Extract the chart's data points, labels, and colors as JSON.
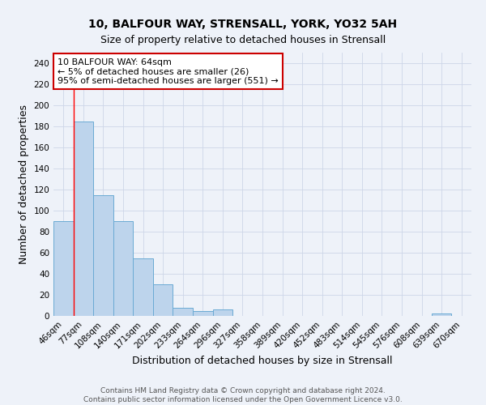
{
  "title": "10, BALFOUR WAY, STRENSALL, YORK, YO32 5AH",
  "subtitle": "Size of property relative to detached houses in Strensall",
  "xlabel": "Distribution of detached houses by size in Strensall",
  "ylabel": "Number of detached properties",
  "footer_line1": "Contains HM Land Registry data © Crown copyright and database right 2024.",
  "footer_line2": "Contains public sector information licensed under the Open Government Licence v3.0.",
  "bar_labels": [
    "46sqm",
    "77sqm",
    "108sqm",
    "140sqm",
    "171sqm",
    "202sqm",
    "233sqm",
    "264sqm",
    "296sqm",
    "327sqm",
    "358sqm",
    "389sqm",
    "420sqm",
    "452sqm",
    "483sqm",
    "514sqm",
    "545sqm",
    "576sqm",
    "608sqm",
    "639sqm",
    "670sqm"
  ],
  "bar_values": [
    90,
    185,
    115,
    90,
    55,
    30,
    8,
    5,
    6,
    0,
    0,
    0,
    0,
    0,
    0,
    0,
    0,
    0,
    0,
    2,
    0
  ],
  "bar_color": "#bdd4ec",
  "bar_edge_color": "#6aaad4",
  "background_color": "#eef2f9",
  "annotation_line1": "10 BALFOUR WAY: 64sqm",
  "annotation_line2": "← 5% of detached houses are smaller (26)",
  "annotation_line3": "95% of semi-detached houses are larger (551) →",
  "annotation_box_color": "#ffffff",
  "annotation_box_edge_color": "#cc0000",
  "red_line_x": 0.5,
  "ylim": [
    0,
    250
  ],
  "yticks": [
    0,
    20,
    40,
    60,
    80,
    100,
    120,
    140,
    160,
    180,
    200,
    220,
    240
  ],
  "grid_color": "#cdd6e8",
  "title_fontsize": 10,
  "subtitle_fontsize": 9,
  "axis_label_fontsize": 9,
  "tick_fontsize": 7.5,
  "annotation_fontsize": 8,
  "footer_fontsize": 6.5
}
